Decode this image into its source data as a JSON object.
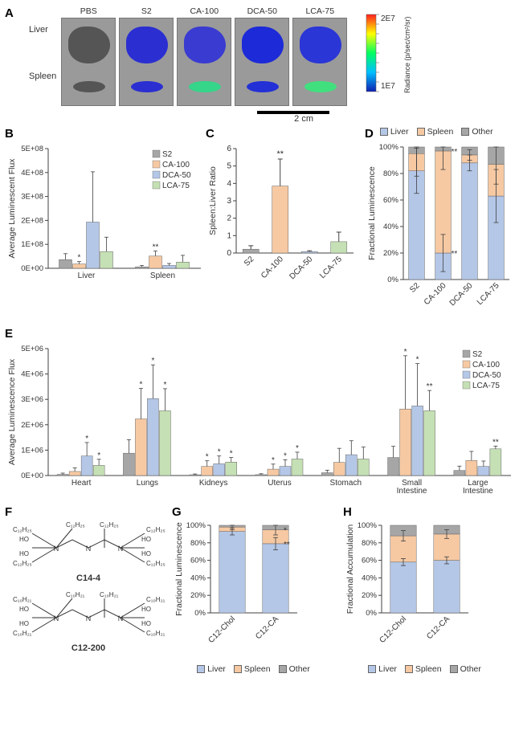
{
  "labels": {
    "A": "A",
    "B": "B",
    "C": "C",
    "D": "D",
    "E": "E",
    "F": "F",
    "G": "G",
    "H": "H"
  },
  "colors": {
    "s2": "#a6a6a6",
    "ca100": "#f6c9a3",
    "dca50": "#b4c7e7",
    "lca75": "#c5e0b4",
    "liver": "#b4c7e7",
    "spleen": "#f6c9a3",
    "other": "#a6a6a6",
    "axis": "#404040",
    "text": "#333333",
    "errorbar": "#404040",
    "bg": "#ffffff"
  },
  "panelA": {
    "row_labels": [
      "Liver",
      "Spleen"
    ],
    "columns": [
      "PBS",
      "S2",
      "CA-100",
      "DCA-50",
      "LCA-75"
    ],
    "colorbar": {
      "label_top": "2E7",
      "label_bot": "1E7",
      "caption": "Radiance (p/sec/cm²/sr)"
    },
    "scalebar": "2 cm",
    "images": [
      {
        "liver_color": "#555555",
        "spleen_color": "#555555"
      },
      {
        "liver_color": "#2b2fd1",
        "spleen_color": "#2b2fd1"
      },
      {
        "liver_color": "#3a3bd0",
        "spleen_color": "#35d58a"
      },
      {
        "liver_color": "#1d2ad8",
        "spleen_color": "#2330d6"
      },
      {
        "liver_color": "#2a36d6",
        "spleen_color": "#40e07e"
      }
    ]
  },
  "panelB": {
    "ylabel": "Average Luminescent Flux",
    "ylim": [
      0,
      500000000.0
    ],
    "yticks": [
      "0E+00",
      "1E+08",
      "2E+08",
      "3E+08",
      "4E+08",
      "5E+08"
    ],
    "groups": [
      "Liver",
      "Spleen"
    ],
    "legend": [
      "S2",
      "CA-100",
      "DCA-50",
      "LCA-75"
    ],
    "series": [
      {
        "name": "S2",
        "color": "#a6a6a6",
        "values": [
          36000000.0,
          6000000.0
        ],
        "err": [
          25000000.0,
          6000000.0
        ],
        "sig": [
          "",
          ""
        ]
      },
      {
        "name": "CA-100",
        "color": "#f6c9a3",
        "values": [
          18000000.0,
          51000000.0
        ],
        "err": [
          10000000.0,
          21000000.0
        ],
        "sig": [
          "*",
          "**"
        ]
      },
      {
        "name": "DCA-50",
        "color": "#b4c7e7",
        "values": [
          193000000.0,
          12000000.0
        ],
        "err": [
          210000000.0,
          8000000.0
        ],
        "sig": [
          "",
          ""
        ]
      },
      {
        "name": "LCA-75",
        "color": "#c5e0b4",
        "values": [
          70000000.0,
          26000000.0
        ],
        "err": [
          60000000.0,
          28000000.0
        ],
        "sig": [
          "",
          ""
        ]
      }
    ]
  },
  "panelC": {
    "ylabel": "Spleen:Liver Ratio",
    "ylim": [
      0,
      6
    ],
    "yticks": [
      "0",
      "1",
      "2",
      "3",
      "4",
      "5",
      "6"
    ],
    "categories": [
      "S2",
      "CA-100",
      "DCA-50",
      "LCA-75"
    ],
    "bars": [
      {
        "value": 0.22,
        "err": 0.2,
        "color": "#a6a6a6",
        "sig": ""
      },
      {
        "value": 3.85,
        "err": 1.55,
        "color": "#f6c9a3",
        "sig": "**"
      },
      {
        "value": 0.08,
        "err": 0.05,
        "color": "#b4c7e7",
        "sig": ""
      },
      {
        "value": 0.65,
        "err": 0.55,
        "color": "#c5e0b4",
        "sig": ""
      }
    ]
  },
  "panelD": {
    "ylabel": "Fractional Luminescence",
    "yticks": [
      "0%",
      "20%",
      "40%",
      "60%",
      "80%",
      "100%"
    ],
    "categories": [
      "S2",
      "CA-100",
      "DCA-50",
      "LCA-75"
    ],
    "legend": [
      "Liver",
      "Spleen",
      "Other"
    ],
    "stacks": [
      {
        "liver": 82,
        "spleen": 13,
        "other": 5,
        "liver_err": 17,
        "spleen_err": 17,
        "liver_sig": "",
        "spleen_sig": ""
      },
      {
        "liver": 20,
        "spleen": 77,
        "other": 3,
        "liver_err": 14,
        "spleen_err": 14,
        "liver_sig": "**",
        "spleen_sig": "**"
      },
      {
        "liver": 88,
        "spleen": 6,
        "other": 6,
        "liver_err": 6,
        "spleen_err": 4,
        "liver_sig": "",
        "spleen_sig": ""
      },
      {
        "liver": 63,
        "spleen": 24,
        "other": 13,
        "liver_err": 20,
        "spleen_err": 15,
        "liver_sig": "",
        "spleen_sig": ""
      }
    ]
  },
  "panelE": {
    "ylabel": "Average Luminescence Flux",
    "ylim": [
      0,
      5000000.0
    ],
    "yticks": [
      "0E+00",
      "1E+06",
      "2E+06",
      "3E+06",
      "4E+06",
      "5E+06"
    ],
    "groups": [
      "Heart",
      "Lungs",
      "Kidneys",
      "Uterus",
      "Stomach",
      "Small\nIntestine",
      "Large\nIntestine"
    ],
    "legend": [
      "S2",
      "CA-100",
      "DCA-50",
      "LCA-75"
    ],
    "series": [
      {
        "name": "S2",
        "color": "#a6a6a6",
        "values": [
          45000.0,
          880000.0,
          30000.0,
          35000.0,
          110000.0,
          710000.0,
          200000.0
        ],
        "err": [
          50000.0,
          530000.0,
          30000.0,
          35000.0,
          100000.0,
          440000.0,
          170000.0
        ],
        "sig": [
          "",
          "",
          "",
          "",
          "",
          "",
          ""
        ]
      },
      {
        "name": "CA-100",
        "color": "#f6c9a3",
        "values": [
          160000.0,
          2230000.0,
          360000.0,
          250000.0,
          520000.0,
          2620000.0,
          590000.0
        ],
        "err": [
          140000.0,
          1200000.0,
          220000.0,
          200000.0,
          550000.0,
          2100000.0,
          360000.0
        ],
        "sig": [
          "",
          "*",
          "*",
          "*",
          "",
          "*",
          ""
        ]
      },
      {
        "name": "DCA-50",
        "color": "#b4c7e7",
        "values": [
          770000.0,
          3030000.0,
          460000.0,
          360000.0,
          820000.0,
          2740000.0,
          360000.0
        ],
        "err": [
          530000.0,
          1330000.0,
          310000.0,
          260000.0,
          550000.0,
          1670000.0,
          210000.0
        ],
        "sig": [
          "*",
          "*",
          "*",
          "*",
          "",
          "*",
          ""
        ]
      },
      {
        "name": "LCA-75",
        "color": "#c5e0b4",
        "values": [
          400000.0,
          2550000.0,
          530000.0,
          650000.0,
          650000.0,
          2550000.0,
          1050000.0
        ],
        "err": [
          240000.0,
          870000.0,
          180000.0,
          270000.0,
          470000.0,
          800000.0,
          110000.0
        ],
        "sig": [
          "*",
          "*",
          "*",
          "*",
          "",
          "**",
          "**"
        ]
      }
    ]
  },
  "panelF": {
    "name1": "C14-4",
    "name2": "C12-200",
    "tail1": "C₁₂H₂₅",
    "tail2": "C₁₀H₂₁"
  },
  "panelG": {
    "ylabel": "Fractional Luminescence",
    "yticks": [
      "0%",
      "20%",
      "40%",
      "60%",
      "80%",
      "100%"
    ],
    "categories": [
      "C12-Chol",
      "C12-CA"
    ],
    "legend": [
      "Liver",
      "Spleen",
      "Other"
    ],
    "stacks": [
      {
        "liver": 93,
        "spleen": 5,
        "other": 2,
        "liver_err": 4,
        "spleen_err": 3,
        "liver_sig": "",
        "spleen_sig": ""
      },
      {
        "liver": 79,
        "spleen": 16,
        "other": 5,
        "liver_err": 7,
        "spleen_err": 6,
        "liver_sig": "**",
        "spleen_sig": "*"
      }
    ]
  },
  "panelH": {
    "ylabel": "Fractional Accumulation",
    "yticks": [
      "0%",
      "20%",
      "40%",
      "60%",
      "80%",
      "100%"
    ],
    "categories": [
      "C12-Chol",
      "C12-CA"
    ],
    "legend": [
      "Liver",
      "Spleen",
      "Other"
    ],
    "stacks": [
      {
        "liver": 58,
        "spleen": 30,
        "other": 12,
        "liver_err": 4,
        "spleen_err": 6,
        "liver_sig": "",
        "spleen_sig": ""
      },
      {
        "liver": 60,
        "spleen": 30,
        "other": 10,
        "liver_err": 4,
        "spleen_err": 5,
        "liver_sig": "",
        "spleen_sig": ""
      }
    ]
  }
}
